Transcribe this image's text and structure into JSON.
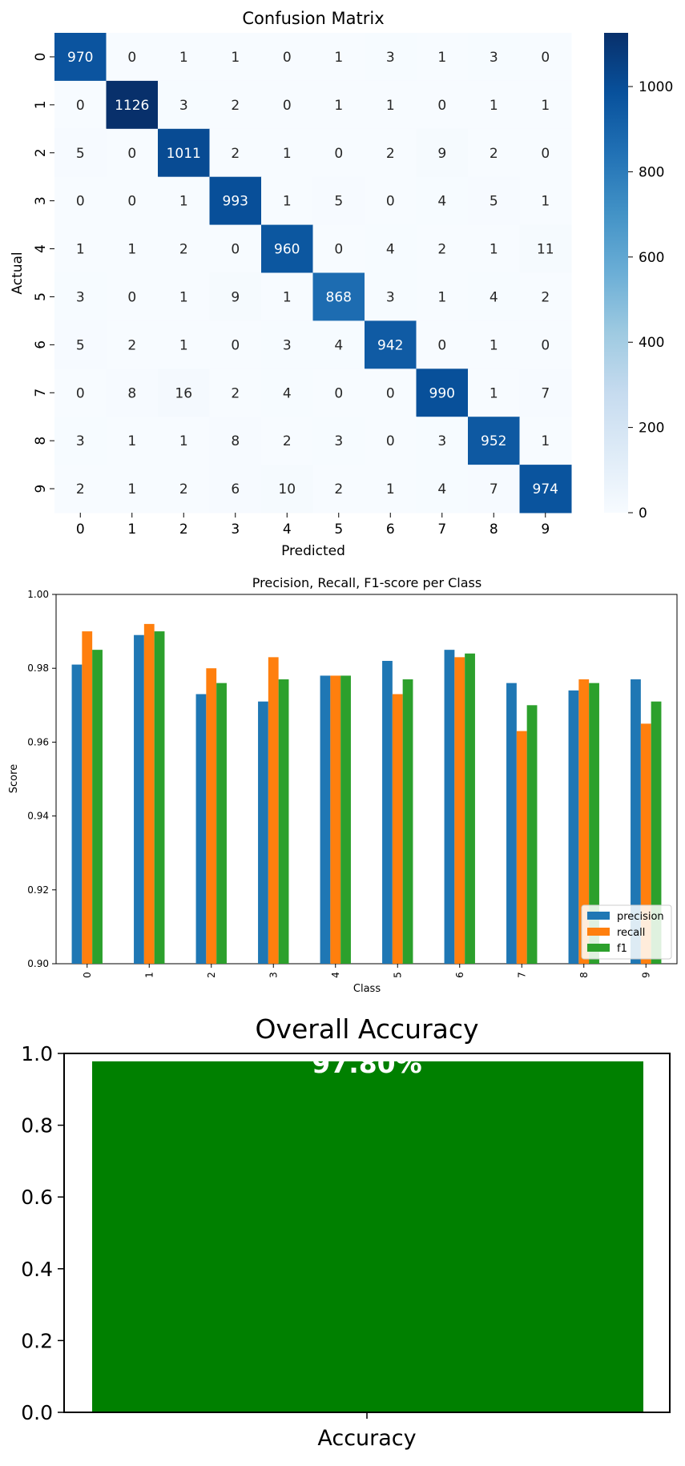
{
  "chart_data": [
    {
      "type": "heatmap",
      "title": "Confusion Matrix",
      "xlabel": "Predicted",
      "ylabel": "Actual",
      "x_categories": [
        "0",
        "1",
        "2",
        "3",
        "4",
        "5",
        "6",
        "7",
        "8",
        "9"
      ],
      "y_categories": [
        "0",
        "1",
        "2",
        "3",
        "4",
        "5",
        "6",
        "7",
        "8",
        "9"
      ],
      "values": [
        [
          970,
          0,
          1,
          1,
          0,
          1,
          3,
          1,
          3,
          0
        ],
        [
          0,
          1126,
          3,
          2,
          0,
          1,
          1,
          0,
          1,
          1
        ],
        [
          5,
          0,
          1011,
          2,
          1,
          0,
          2,
          9,
          2,
          0
        ],
        [
          0,
          0,
          1,
          993,
          1,
          5,
          0,
          4,
          5,
          1
        ],
        [
          1,
          1,
          2,
          0,
          960,
          0,
          4,
          2,
          1,
          11
        ],
        [
          3,
          0,
          1,
          9,
          1,
          868,
          3,
          1,
          4,
          2
        ],
        [
          5,
          2,
          1,
          0,
          3,
          4,
          942,
          0,
          1,
          0
        ],
        [
          0,
          8,
          16,
          2,
          4,
          0,
          0,
          990,
          1,
          7
        ],
        [
          3,
          1,
          1,
          8,
          2,
          3,
          0,
          3,
          952,
          1
        ],
        [
          2,
          1,
          2,
          6,
          10,
          2,
          1,
          4,
          7,
          974
        ]
      ],
      "colormap": "Blues",
      "colorbar": {
        "min": 0,
        "max": 1126,
        "ticks": [
          "0",
          "200",
          "400",
          "600",
          "800",
          "1000"
        ]
      }
    },
    {
      "type": "bar",
      "title": "Precision, Recall, F1-score per Class",
      "xlabel": "Class",
      "ylabel": "Score",
      "ylim": [
        0.9,
        1.0
      ],
      "yticks": [
        "0.90",
        "0.92",
        "0.94",
        "0.96",
        "0.98",
        "1.00"
      ],
      "categories": [
        "0",
        "1",
        "2",
        "3",
        "4",
        "5",
        "6",
        "7",
        "8",
        "9"
      ],
      "series": [
        {
          "name": "precision",
          "color": "#1f77b4",
          "values": [
            0.981,
            0.989,
            0.973,
            0.971,
            0.978,
            0.982,
            0.985,
            0.976,
            0.974,
            0.977
          ]
        },
        {
          "name": "recall",
          "color": "#ff7f0e",
          "values": [
            0.99,
            0.992,
            0.98,
            0.983,
            0.978,
            0.973,
            0.983,
            0.963,
            0.977,
            0.965
          ]
        },
        {
          "name": "f1",
          "color": "#2ca02c",
          "values": [
            0.985,
            0.99,
            0.976,
            0.977,
            0.978,
            0.977,
            0.984,
            0.97,
            0.976,
            0.971
          ]
        }
      ],
      "legend": "lower-right"
    },
    {
      "type": "bar",
      "title": "Overall Accuracy",
      "categories": [
        "Accuracy"
      ],
      "values": [
        0.978
      ],
      "ylim": [
        0,
        1.0
      ],
      "yticks": [
        "0.0",
        "0.2",
        "0.4",
        "0.6",
        "0.8",
        "1.0"
      ],
      "bar_label": "97.80%",
      "color": "#008000"
    }
  ]
}
